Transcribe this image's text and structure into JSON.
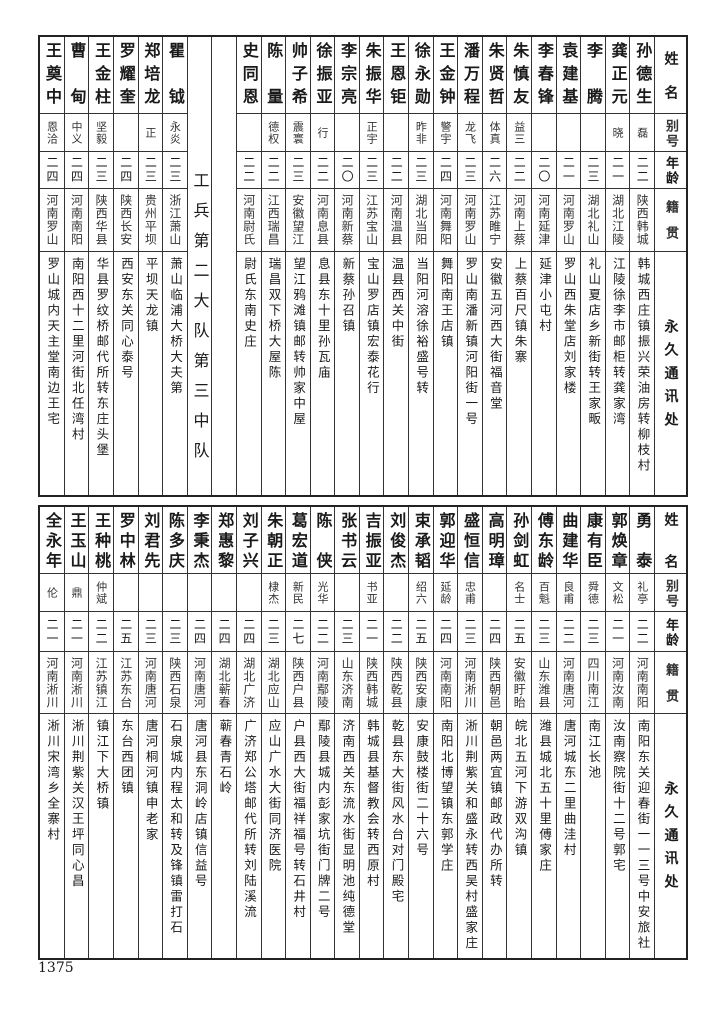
{
  "headers": {
    "name": "姓名",
    "alias": "别号",
    "age": "年龄",
    "native": "籍贯",
    "address": "永久通讯处"
  },
  "top": {
    "section_label": "工兵第二大队第三中队",
    "people": [
      {
        "name": "孙德生",
        "alias": "磊",
        "age": "二二",
        "native": "陕西韩城",
        "address": "韩城西庄镇振兴荣油房转柳枝村"
      },
      {
        "name": "龚正元",
        "alias": "晓",
        "age": "二一",
        "native": "湖北江陵",
        "address": "江陵徐李市邮柜转龚家湾"
      },
      {
        "name": "李腾",
        "alias": "",
        "age": "二三",
        "native": "湖北礼山",
        "address": "礼山夏店乡新街转王家畈"
      },
      {
        "name": "袁建基",
        "alias": "",
        "age": "二一",
        "native": "河南罗山",
        "address": "罗山西朱堂店刘家楼"
      },
      {
        "name": "李春锋",
        "alias": "",
        "age": "二〇",
        "native": "河南延津",
        "address": "延津小屯村"
      },
      {
        "name": "朱慎友",
        "alias": "益三",
        "age": "二二",
        "native": "河南上蔡",
        "address": "上蔡百尺镇朱寨"
      },
      {
        "name": "朱贤哲",
        "alias": "体真",
        "age": "二六",
        "native": "江苏睢宁",
        "address": "安徽五河西大街福音堂"
      },
      {
        "name": "潘万程",
        "alias": "龙飞",
        "age": "二三",
        "native": "河南罗山",
        "address": "罗山南潘新镇河阳街一号"
      },
      {
        "name": "王金钟",
        "alias": "警宇",
        "age": "二四",
        "native": "河南舞阳",
        "address": "舞阳南王店镇"
      },
      {
        "name": "徐永勋",
        "alias": "昨非",
        "age": "二三",
        "native": "湖北当阳",
        "address": "当阳河溶徐裕盛号转"
      },
      {
        "name": "王恩钜",
        "alias": "",
        "age": "二二",
        "native": "河南温县",
        "address": "温县西关中街"
      },
      {
        "name": "朱振华",
        "alias": "正宇",
        "age": "二三",
        "native": "江苏宝山",
        "address": "宝山罗店镇宏泰花行"
      },
      {
        "name": "李宗亮",
        "alias": "",
        "age": "二〇",
        "native": "河南新蔡",
        "address": "新蔡孙召镇"
      },
      {
        "name": "徐振亚",
        "alias": "行",
        "age": "二二",
        "native": "河南息县",
        "address": "息县东十里孙瓦庙"
      },
      {
        "name": "帅子希",
        "alias": "震寰",
        "age": "二三",
        "native": "安徽望江",
        "address": "望江鸦滩镇邮转帅家中屋"
      },
      {
        "name": "陈量",
        "alias": "德权",
        "age": "二二",
        "native": "江西瑞昌",
        "address": "瑞昌双下桥大屋陈"
      },
      {
        "name": "史同恩",
        "alias": "",
        "age": "二二",
        "native": "河南尉氏",
        "address": "尉氏东南史庄"
      }
    ],
    "people_after_section": [
      {
        "name": "瞿钺",
        "alias": "永炎",
        "age": "二三",
        "native": "浙江萧山",
        "address": "萧山临浦大桥大夫第"
      },
      {
        "name": "郑培龙",
        "alias": "正",
        "age": "二三",
        "native": "贵州平坝",
        "address": "平坝天龙镇"
      },
      {
        "name": "罗耀奎",
        "alias": "",
        "age": "二四",
        "native": "陕西长安",
        "address": "西安东关同心泰号"
      },
      {
        "name": "王金柱",
        "alias": "坚毅",
        "age": "二三",
        "native": "陕西华县",
        "address": "华县罗纹桥邮代所转东庄头堡"
      },
      {
        "name": "曹甸",
        "alias": "中义",
        "age": "二四",
        "native": "河南南阳",
        "address": "南阳西十二里河街北任湾村"
      },
      {
        "name": "王奠中",
        "alias": "恩洽",
        "age": "二四",
        "native": "河南罗山",
        "address": "罗山城内天主堂南边王宅"
      }
    ]
  },
  "bottom": {
    "people": [
      {
        "name": "勇泰",
        "alias": "礼亭",
        "age": "二二",
        "native": "河南南阳",
        "address": "南阳东关迎春街一一三号中安旅社"
      },
      {
        "name": "郭焕章",
        "alias": "文松",
        "age": "二一",
        "native": "河南汝南",
        "address": "汝南察院街十二号郭宅"
      },
      {
        "name": "康有臣",
        "alias": "舜德",
        "age": "二三",
        "native": "四川南江",
        "address": "南江长池"
      },
      {
        "name": "曲建华",
        "alias": "良甫",
        "age": "二二",
        "native": "河南唐河",
        "address": "唐河城东二里曲洼村"
      },
      {
        "name": "傅东龄",
        "alias": "百魁",
        "age": "二三",
        "native": "山东潍县",
        "address": "潍县城北五十里傅家庄"
      },
      {
        "name": "孙剑虹",
        "alias": "名士",
        "age": "二五",
        "native": "安徽盱眙",
        "address": "皖北五河下游双沟镇"
      },
      {
        "name": "高明璋",
        "alias": "",
        "age": "二四",
        "native": "陕西朝邑",
        "address": "朝邑两宜镇邮政代办所转"
      },
      {
        "name": "盛恒信",
        "alias": "忠甫",
        "age": "二三",
        "native": "河南淅川",
        "address": "淅川荆紫关和盛永转西吴村盛家庄"
      },
      {
        "name": "郭迎华",
        "alias": "延龄",
        "age": "二四",
        "native": "河南南阳",
        "address": "南阳北博望镇东郭学庄"
      },
      {
        "name": "束承韬",
        "alias": "绍六",
        "age": "二五",
        "native": "陕西安康",
        "address": "安康鼓楼街二十六号"
      },
      {
        "name": "刘俊杰",
        "alias": "",
        "age": "二二",
        "native": "陕西乾县",
        "address": "乾县东大街风水台对门殿宅"
      },
      {
        "name": "吉振亚",
        "alias": "书亚",
        "age": "二一",
        "native": "陕西韩城",
        "address": "韩城县基督教会转西原村"
      },
      {
        "name": "张书云",
        "alias": "",
        "age": "二三",
        "native": "山东济南",
        "address": "济南西关东流水街显明池纯德堂"
      },
      {
        "name": "陈侠",
        "alias": "光华",
        "age": "二二",
        "native": "河南鄢陵",
        "address": "鄢陵县城内彭家坑街门牌二号"
      },
      {
        "name": "葛宏道",
        "alias": "新民",
        "age": "二七",
        "native": "陕西户县",
        "address": "户县西大街福祥福号转石井村"
      },
      {
        "name": "朱朝正",
        "alias": "棣杰",
        "age": "二三",
        "native": "湖北应山",
        "address": "应山广水大街同济医院"
      },
      {
        "name": "刘子兴",
        "alias": "",
        "age": "二四",
        "native": "湖北广济",
        "address": "广济郑公塔邮代所转刘陆溪流"
      },
      {
        "name": "郑惠黎",
        "alias": "",
        "age": "二四",
        "native": "湖北蕲春",
        "address": "蕲春青石岭"
      },
      {
        "name": "李秉杰",
        "alias": "",
        "age": "二四",
        "native": "河南唐河",
        "address": "唐河县东洞岭店镇信益号"
      },
      {
        "name": "陈多庆",
        "alias": "",
        "age": "二三",
        "native": "陕西石泉",
        "address": "石泉城内程太和转及锋镇雷打石"
      },
      {
        "name": "刘君先",
        "alias": "",
        "age": "二三",
        "native": "河南唐河",
        "address": "唐河桐河镇申老家"
      },
      {
        "name": "罗中林",
        "alias": "",
        "age": "二五",
        "native": "江苏东台",
        "address": "东台西团镇"
      },
      {
        "name": "王种桃",
        "alias": "仲斌",
        "age": "二二",
        "native": "江苏镇江",
        "address": "镇江下大桥镇"
      },
      {
        "name": "王玉山",
        "alias": "鼎",
        "age": "二一",
        "native": "河南淅川",
        "address": "淅川荆紫关汉王坪同心昌"
      },
      {
        "name": "全永年",
        "alias": "伦",
        "age": "二一",
        "native": "河南淅川",
        "address": "淅川宋湾乡全寨村"
      }
    ]
  },
  "page_number": "1375"
}
